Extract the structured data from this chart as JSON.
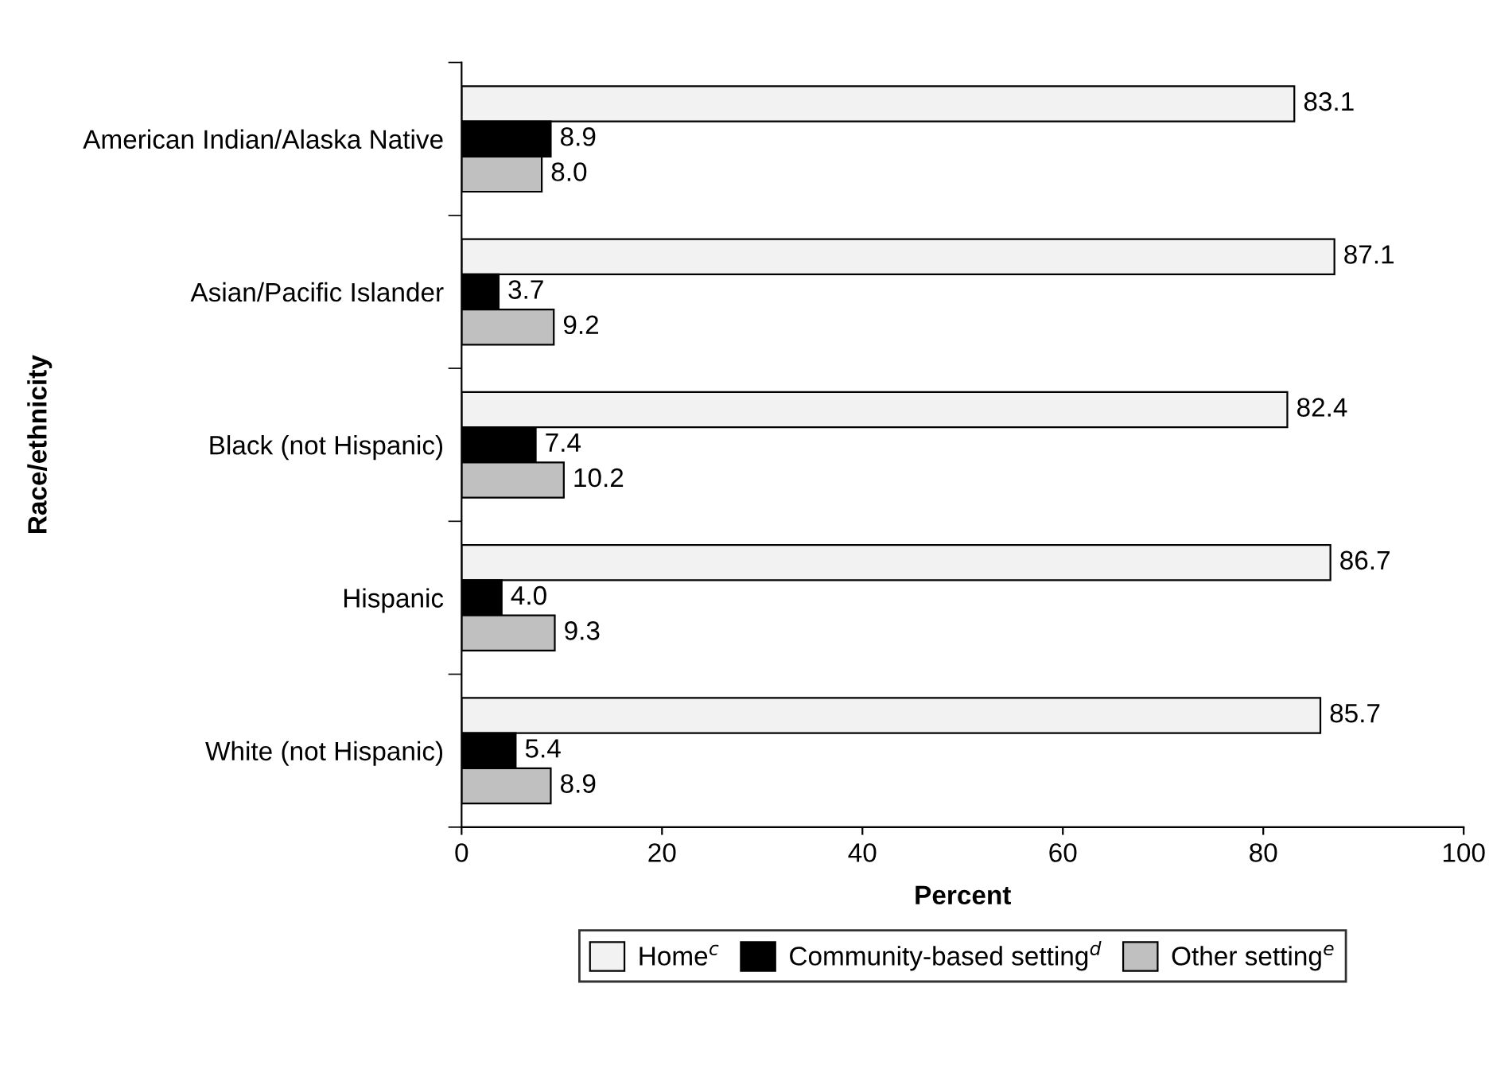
{
  "chart_data": {
    "type": "bar",
    "orientation": "horizontal",
    "xlabel": "Percent",
    "ylabel": "Race/ethnicity",
    "categories": [
      "American Indian/Alaska Native",
      "Asian/Pacific Islander",
      "Black (not Hispanic)",
      "Hispanic",
      "White (not Hispanic)"
    ],
    "series": [
      {
        "name": "Home$^{c}$",
        "color": "#f2f2f2",
        "values": [
          83.1,
          87.1,
          82.4,
          86.7,
          85.7
        ],
        "value_labels": [
          "83.1",
          "87.1",
          "82.4",
          "86.7",
          "85.7"
        ]
      },
      {
        "name": "Community-based setting$^{d}$",
        "color": "#000000",
        "values": [
          8.9,
          3.7,
          7.4,
          4.0,
          5.4
        ],
        "value_labels": [
          "8.9",
          "3.7",
          "7.4",
          "4.0",
          "5.4"
        ]
      },
      {
        "name": "Other setting$^{e}$",
        "color": "#c0c0c0",
        "values": [
          8.0,
          9.2,
          10.2,
          9.3,
          8.9
        ],
        "value_labels": [
          "8.0",
          "9.2",
          "10.2",
          "9.3",
          "8.9"
        ]
      }
    ],
    "xlim": [
      0,
      100
    ],
    "xticks": [
      0,
      20,
      40,
      60,
      80,
      100
    ],
    "grid": false,
    "legend": "bottom"
  }
}
